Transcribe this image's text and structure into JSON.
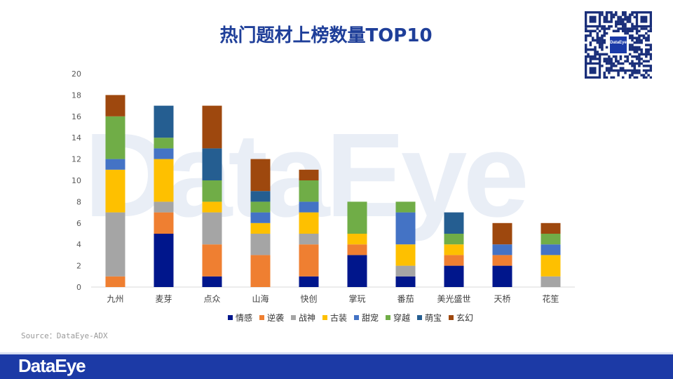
{
  "brand": {
    "watermark": "DataEye",
    "footer_logo": "DataEye",
    "qr_logo_text": "DataEye",
    "footer_color": "#1c3aa6",
    "title_color": "#1f3f99"
  },
  "source": "Source：DataEye-ADX",
  "chart_data": {
    "type": "bar",
    "stacked": true,
    "title": "热门题材上榜数量TOP10",
    "xlabel": "",
    "ylabel": "",
    "ylim": [
      0,
      20
    ],
    "yticks": [
      0,
      2,
      4,
      6,
      8,
      10,
      12,
      14,
      16,
      18,
      20
    ],
    "grid": false,
    "legend_position": "bottom",
    "categories": [
      "九州",
      "麦芽",
      "点众",
      "山海",
      "快创",
      "掌玩",
      "番茄",
      "美光盛世",
      "天桥",
      "花笙"
    ],
    "series": [
      {
        "name": "情感",
        "color": "#00168c",
        "values": [
          0,
          5,
          1,
          0,
          1,
          3,
          1,
          2,
          2,
          0
        ]
      },
      {
        "name": "逆袭",
        "color": "#ef7f31",
        "values": [
          1,
          2,
          3,
          3,
          3,
          1,
          0,
          1,
          1,
          0
        ]
      },
      {
        "name": "战神",
        "color": "#a5a5a5",
        "values": [
          6,
          1,
          3,
          2,
          1,
          0,
          1,
          0,
          0,
          1
        ]
      },
      {
        "name": "古装",
        "color": "#fec000",
        "values": [
          4,
          4,
          1,
          1,
          2,
          1,
          2,
          1,
          0,
          2
        ]
      },
      {
        "name": "甜宠",
        "color": "#4473c5",
        "values": [
          1,
          1,
          0,
          1,
          1,
          0,
          3,
          0,
          1,
          1
        ]
      },
      {
        "name": "穿越",
        "color": "#70ad47",
        "values": [
          4,
          1,
          2,
          1,
          2,
          3,
          1,
          1,
          0,
          1
        ]
      },
      {
        "name": "萌宝",
        "color": "#255e91",
        "values": [
          0,
          3,
          3,
          1,
          0,
          0,
          0,
          2,
          0,
          0
        ]
      },
      {
        "name": "玄幻",
        "color": "#9e480e",
        "values": [
          2,
          0,
          4,
          3,
          1,
          0,
          0,
          0,
          2,
          1
        ]
      }
    ]
  }
}
